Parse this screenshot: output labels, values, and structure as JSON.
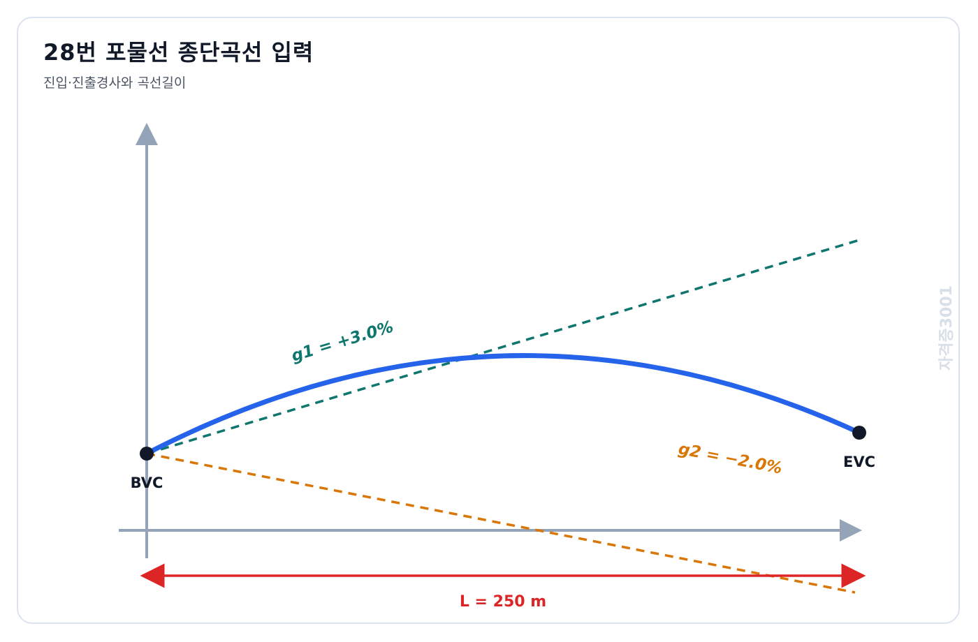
{
  "header": {
    "title": "28번 포물선 종단곡선 입력",
    "subtitle": "진입·진출경사와 곡선길이"
  },
  "diagram": {
    "points": {
      "start_label": "BVC",
      "end_label": "EVC"
    },
    "grades": {
      "g1_label": "g1 = +3.0%",
      "g1_value_percent": 3.0,
      "g2_label": "g2 = −2.0%",
      "g2_value_percent": -2.0
    },
    "length": {
      "label": "L = 250 m",
      "value_m": 250
    },
    "watermark": "자격증3001"
  },
  "colors": {
    "curve": "#2563eb",
    "g1_tangent": "#0f766e",
    "g2_tangent": "#d97706",
    "axis": "#94a3b8",
    "dimension": "#dc2626",
    "point": "#111827"
  }
}
